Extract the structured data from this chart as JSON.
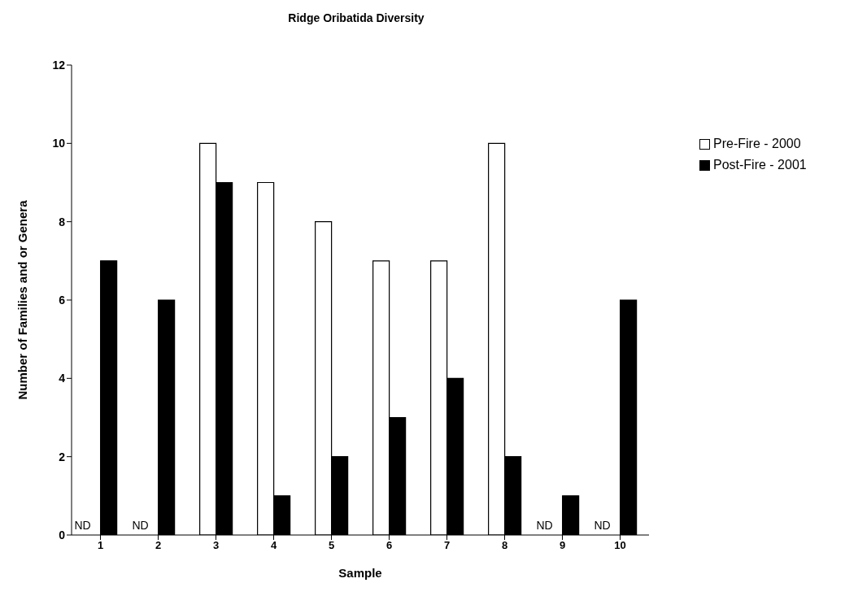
{
  "chart_data": {
    "type": "bar",
    "title": "Ridge Oribatida Diversity",
    "xlabel": "Sample",
    "ylabel": "Number of Families and or Genera",
    "categories": [
      "1",
      "2",
      "3",
      "4",
      "5",
      "6",
      "7",
      "8",
      "9",
      "10"
    ],
    "series": [
      {
        "name": "Pre-Fire - 2000",
        "color": "#ffffff",
        "values": [
          null,
          null,
          10,
          9,
          8,
          7,
          7,
          10,
          null,
          null
        ]
      },
      {
        "name": "Post-Fire - 2001",
        "color": "#000000",
        "values": [
          7,
          6,
          9,
          1,
          2,
          3,
          4,
          2,
          1,
          6
        ]
      }
    ],
    "annotations": [
      {
        "text": "ND",
        "x": "1",
        "y": 0
      },
      {
        "text": "ND",
        "x": "2",
        "y": 0
      },
      {
        "text": "ND",
        "x": "9",
        "y": 0
      },
      {
        "text": "ND",
        "x": "10",
        "y": 0
      }
    ],
    "ylim": [
      0,
      12
    ],
    "yticks": [
      0,
      2,
      4,
      6,
      8,
      10,
      12
    ],
    "grid": false,
    "legend": "top right"
  }
}
